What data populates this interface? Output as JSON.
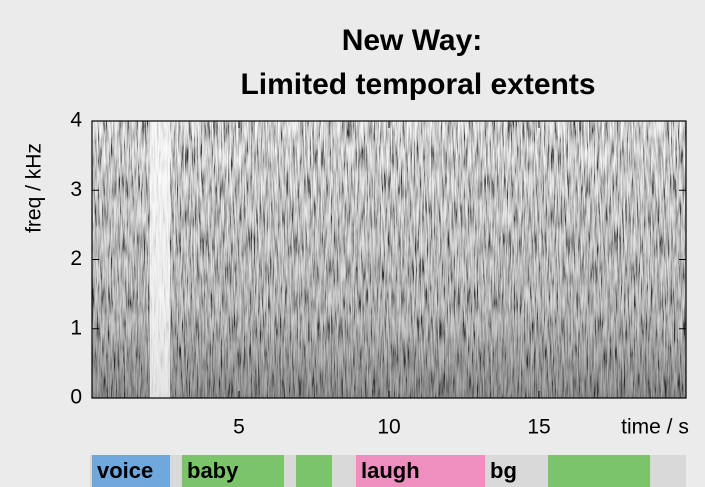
{
  "chart_data": {
    "type": "spectrogram",
    "title": [
      "New Way:",
      "Limited temporal extents"
    ],
    "x_label": "time / s",
    "y_label": "freq / kHz",
    "xlim": [
      0.1,
      19.9
    ],
    "xticks": [
      5,
      10,
      15
    ],
    "ylim": [
      0,
      4
    ],
    "yticks": [
      0,
      1,
      2,
      3,
      4
    ],
    "segments": [
      {
        "label": "voice",
        "start": 0.1,
        "end": 2.7,
        "color": "#6fa8dc"
      },
      {
        "label": "baby",
        "start": 3.1,
        "end": 6.5,
        "color": "#7cc46a"
      },
      {
        "label": null,
        "start": 6.9,
        "end": 8.1,
        "color": "#7cc46a"
      },
      {
        "label": "laugh",
        "start": 8.9,
        "end": 13.2,
        "color": "#ee8fbf"
      },
      {
        "label": "bg",
        "start": 13.2,
        "end": 15.3,
        "color": "#d9d9d9"
      },
      {
        "label": null,
        "start": 15.3,
        "end": 18.7,
        "color": "#7cc46a"
      }
    ]
  }
}
